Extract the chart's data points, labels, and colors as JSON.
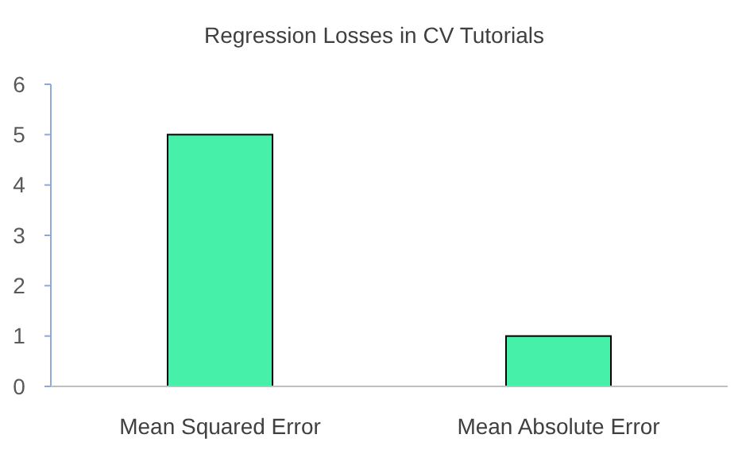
{
  "chart_data": {
    "type": "bar",
    "title": "Regression Losses in CV Tutorials",
    "categories": [
      "Mean Squared Error",
      "Mean Absolute Error"
    ],
    "values": [
      5,
      1
    ],
    "color": "#47f0a8",
    "ylim": [
      0,
      6
    ],
    "yticks": [
      0,
      1,
      2,
      3,
      4,
      5,
      6
    ],
    "grid": false
  }
}
